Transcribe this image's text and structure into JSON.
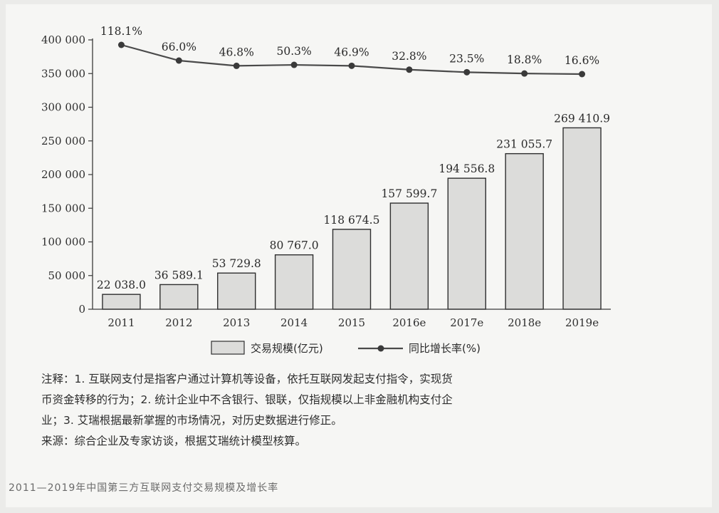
{
  "chart_data": {
    "type": "bar",
    "categories": [
      "2011",
      "2012",
      "2013",
      "2014",
      "2015",
      "2016e",
      "2017e",
      "2018e",
      "2019e"
    ],
    "series": [
      {
        "name": "交易规模(亿元)",
        "type": "bar",
        "values": [
          22038.0,
          36589.1,
          53729.8,
          80767.0,
          118674.5,
          157599.7,
          194556.8,
          231055.7,
          269410.9
        ],
        "labels": [
          "22 038.0",
          "36 589.1",
          "53 729.8",
          "80 767.0",
          "118 674.5",
          "157 599.7",
          "194 556.8",
          "231 055.7",
          "269 410.9"
        ]
      },
      {
        "name": "同比增长率(%)",
        "type": "line",
        "values": [
          118.1,
          66.0,
          46.8,
          50.3,
          46.9,
          32.8,
          23.5,
          18.8,
          16.6
        ],
        "labels": [
          "118.1%",
          "66.0%",
          "46.8%",
          "50.3%",
          "46.9%",
          "32.8%",
          "23.5%",
          "18.8%",
          "16.6%"
        ]
      }
    ],
    "yticks": [
      "0",
      "50 000",
      "100 000",
      "150 000",
      "200 000",
      "250 000",
      "300 000",
      "350 000",
      "400 000"
    ],
    "ylim": [
      0,
      400000
    ],
    "legend_position": "bottom",
    "grid": false
  },
  "notes": [
    "注释：1. 互联网支付是指客户通过计算机等设备，依托互联网发起支付指令，实现货",
    "币资金转移的行为；2. 统计企业中不含银行、银联，仅指规模以上非金融机构支付企",
    "业；3. 艾瑞根据最新掌握的市场情况，对历史数据进行修正。",
    "来源：综合企业及专家访谈，根据艾瑞统计模型核算。"
  ],
  "caption": "2011—2019年中国第三方互联网支付交易规模及增长率",
  "colors": {
    "bar_fill": "#dcdcda",
    "bar_stroke": "#2f2f2f",
    "line": "#4a4a4a",
    "axis": "#3a3a3a"
  }
}
